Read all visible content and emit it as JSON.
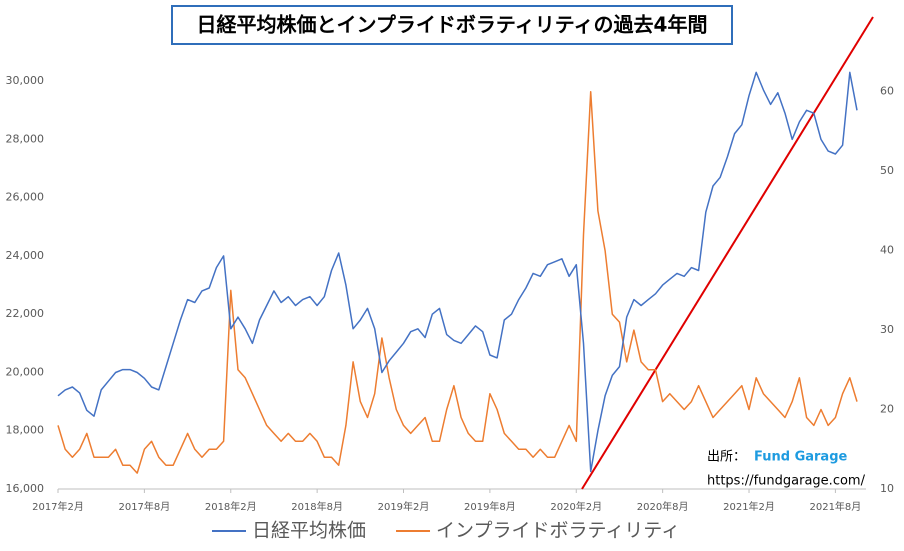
{
  "chart_data": {
    "type": "line",
    "title": "日経平均株価とインプライドボラティリティの過去4年間",
    "categories": [
      "2017年2月",
      null,
      null,
      null,
      null,
      null,
      null,
      null,
      null,
      null,
      null,
      null,
      "2017年8月",
      null,
      null,
      null,
      null,
      null,
      null,
      null,
      null,
      null,
      null,
      null,
      "2018年2月",
      null,
      null,
      null,
      null,
      null,
      null,
      null,
      null,
      null,
      null,
      null,
      "2018年8月",
      null,
      null,
      null,
      null,
      null,
      null,
      null,
      null,
      null,
      null,
      null,
      "2019年2月",
      null,
      null,
      null,
      null,
      null,
      null,
      null,
      null,
      null,
      null,
      null,
      "2019年8月",
      null,
      null,
      null,
      null,
      null,
      null,
      null,
      null,
      null,
      null,
      null,
      "2020年2月",
      null,
      null,
      null,
      null,
      null,
      null,
      null,
      null,
      null,
      null,
      null,
      "2020年8月",
      null,
      null,
      null,
      null,
      null,
      null,
      null,
      null,
      null,
      null,
      null,
      "2021年2月",
      null,
      null,
      null,
      null,
      null,
      null,
      null,
      null,
      null,
      null,
      null,
      "2021年8月",
      null,
      null,
      null
    ],
    "series": [
      {
        "name": "日経平均株価",
        "color": "#4472c4",
        "values": [
          19200,
          19400,
          19500,
          19300,
          18700,
          18500,
          19400,
          19700,
          20000,
          20100,
          20100,
          20000,
          19800,
          19500,
          19400,
          20200,
          21000,
          21800,
          22500,
          22400,
          22800,
          22900,
          23600,
          24000,
          21500,
          21900,
          21500,
          21000,
          21800,
          22300,
          22800,
          22400,
          22600,
          22300,
          22500,
          22600,
          22300,
          22600,
          23500,
          24100,
          23000,
          21500,
          21800,
          22200,
          21500,
          20000,
          20400,
          20700,
          21000,
          21400,
          21500,
          21200,
          22000,
          22200,
          21300,
          21100,
          21000,
          21300,
          21600,
          21400,
          20600,
          20500,
          21800,
          22000,
          22500,
          22900,
          23400,
          23300,
          23700,
          23800,
          23900,
          23300,
          23700,
          21000,
          16600,
          18000,
          19200,
          19900,
          20200,
          21900,
          22500,
          22300,
          22500,
          22700,
          23000,
          23200,
          23400,
          23300,
          23600,
          23500,
          25500,
          26400,
          26700,
          27400,
          28200,
          28500,
          29500,
          30300,
          29700,
          29200,
          29600,
          28900,
          28000,
          28600,
          29000,
          28900,
          28000,
          27600,
          27500,
          27800,
          30300,
          29000
        ]
      },
      {
        "name": "インプライドボラティリティ",
        "color": "#ed7d31",
        "axis": "y2",
        "values": [
          18,
          15,
          14,
          15,
          17,
          14,
          14,
          14,
          15,
          13,
          13,
          12,
          15,
          16,
          14,
          13,
          13,
          15,
          17,
          15,
          14,
          15,
          15,
          16,
          35,
          25,
          24,
          22,
          20,
          18,
          17,
          16,
          17,
          16,
          16,
          17,
          16,
          14,
          14,
          13,
          18,
          26,
          21,
          19,
          22,
          29,
          24,
          20,
          18,
          17,
          18,
          19,
          16,
          16,
          20,
          23,
          19,
          17,
          16,
          16,
          22,
          20,
          17,
          16,
          15,
          15,
          14,
          15,
          14,
          14,
          16,
          18,
          16,
          42,
          60,
          45,
          40,
          32,
          31,
          26,
          30,
          26,
          25,
          25,
          21,
          22,
          21,
          20,
          21,
          23,
          21,
          19,
          20,
          21,
          22,
          23,
          20,
          24,
          22,
          21,
          20,
          19,
          21,
          24,
          19,
          18,
          20,
          18,
          19,
          22,
          24,
          21
        ]
      }
    ],
    "ylim": [
      16000,
      31000
    ],
    "yticks": [
      {
        "value": 16000,
        "label": "16,000"
      },
      {
        "value": 18000,
        "label": "18,000"
      },
      {
        "value": 20000,
        "label": "20,000"
      },
      {
        "value": 22000,
        "label": "22,000"
      },
      {
        "value": 24000,
        "label": "24,000"
      },
      {
        "value": 26000,
        "label": "26,000"
      },
      {
        "value": 28000,
        "label": "28,000"
      },
      {
        "value": 30000,
        "label": "30,000"
      }
    ],
    "y2lim": [
      10,
      65
    ],
    "y2ticks": [
      10,
      20,
      30,
      40,
      50,
      60
    ],
    "source_label": "出所：",
    "source_name": "Fund Garage",
    "source_url": "https://fundgarage.com/"
  }
}
